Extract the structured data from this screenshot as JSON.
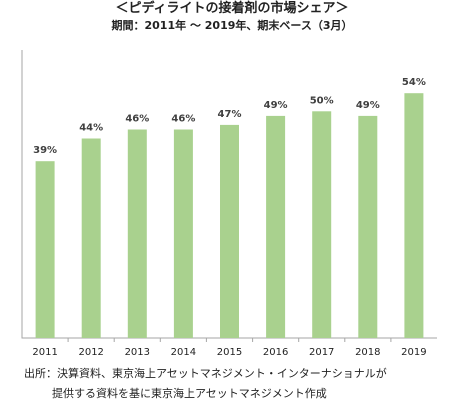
{
  "chart_data": {
    "type": "bar",
    "title": "＜ピディライトの接着剤の市場シェア＞",
    "subtitle": "期間：2011年 〜 2019年、期末ベース（3月）",
    "categories": [
      "2011",
      "2012",
      "2013",
      "2014",
      "2015",
      "2016",
      "2017",
      "2018",
      "2019"
    ],
    "values": [
      39,
      44,
      46,
      46,
      47,
      49,
      50,
      49,
      54
    ],
    "value_labels": [
      "39%",
      "44%",
      "46%",
      "46%",
      "47%",
      "49%",
      "50%",
      "49%",
      "54%"
    ],
    "unit": "%",
    "xlabel": "",
    "ylabel": "",
    "ylim": [
      0,
      60
    ],
    "grid": false,
    "legend": "none",
    "bar_color": "#a9d18e",
    "label_color": "#404040",
    "border_color": "#a6a6a6"
  },
  "source": {
    "line1": "出所：決算資料、東京海上アセットマネジメント・インターナショナルが",
    "line2": "提供する資料を基に東京海上アセットマネジメント作成"
  }
}
